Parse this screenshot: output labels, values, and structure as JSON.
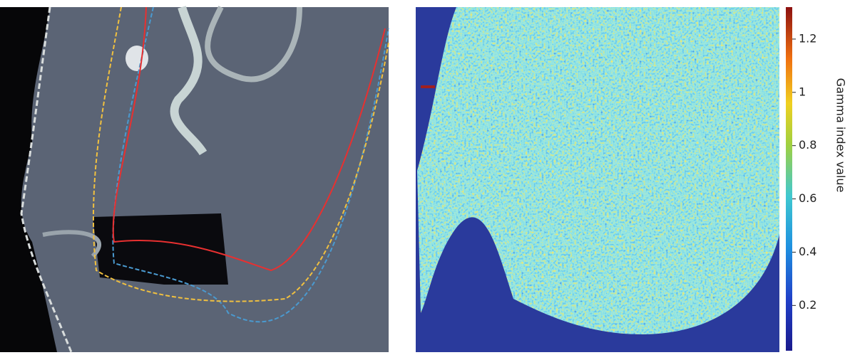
{
  "colorbar": {
    "label": "Gamma index value",
    "lim": [
      0.03,
      1.32
    ],
    "ticks": [
      0.2,
      0.4,
      0.6,
      0.8,
      1,
      1.2
    ]
  }
}
